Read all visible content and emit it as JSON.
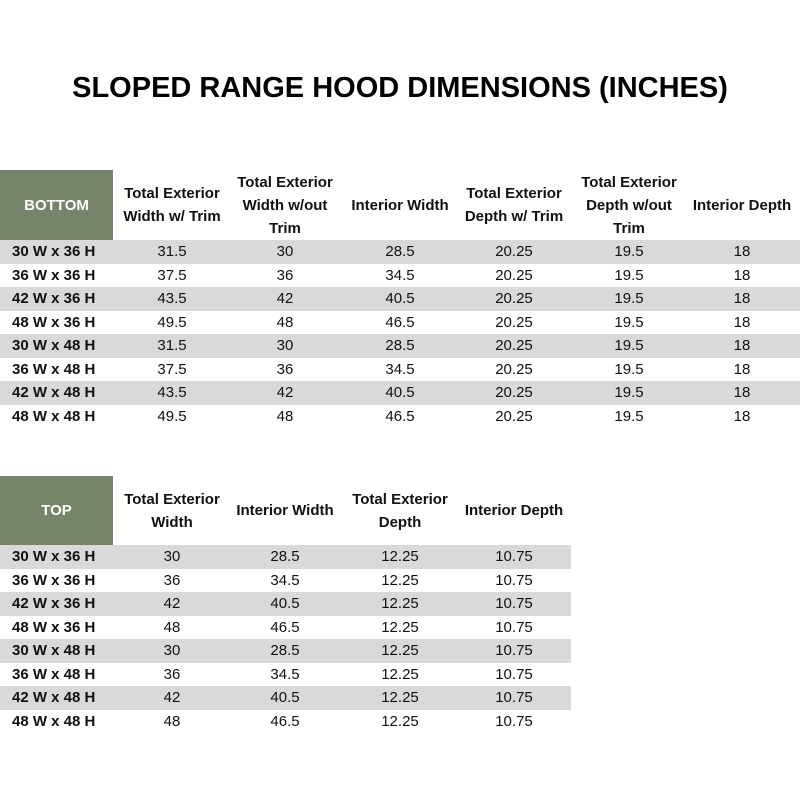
{
  "title": "SLOPED RANGE HOOD DIMENSIONS (INCHES)",
  "bottom": {
    "label": "BOTTOM",
    "columns": [
      "Total Exterior Width w/ Trim",
      "Total Exterior Width w/out Trim",
      "Interior Width",
      "Total Exterior Depth w/ Trim",
      "Total Exterior Depth w/out Trim",
      "Interior Depth"
    ],
    "rows": [
      [
        "30 W x 36 H",
        "31.5",
        "30",
        "28.5",
        "20.25",
        "19.5",
        "18"
      ],
      [
        "36 W x 36 H",
        "37.5",
        "36",
        "34.5",
        "20.25",
        "19.5",
        "18"
      ],
      [
        "42 W x 36 H",
        "43.5",
        "42",
        "40.5",
        "20.25",
        "19.5",
        "18"
      ],
      [
        "48 W x 36 H",
        "49.5",
        "48",
        "46.5",
        "20.25",
        "19.5",
        "18"
      ],
      [
        "30 W x 48 H",
        "31.5",
        "30",
        "28.5",
        "20.25",
        "19.5",
        "18"
      ],
      [
        "36 W x 48 H",
        "37.5",
        "36",
        "34.5",
        "20.25",
        "19.5",
        "18"
      ],
      [
        "42 W x 48 H",
        "43.5",
        "42",
        "40.5",
        "20.25",
        "19.5",
        "18"
      ],
      [
        "48 W x 48 H",
        "49.5",
        "48",
        "46.5",
        "20.25",
        "19.5",
        "18"
      ]
    ]
  },
  "top": {
    "label": "TOP",
    "columns": [
      "Total Exterior Width",
      "Interior Width",
      "Total Exterior Depth",
      "Interior Depth"
    ],
    "rows": [
      [
        "30 W x 36 H",
        "30",
        "28.5",
        "12.25",
        "10.75"
      ],
      [
        "36 W x 36 H",
        "36",
        "34.5",
        "12.25",
        "10.75"
      ],
      [
        "42 W x 36 H",
        "42",
        "40.5",
        "12.25",
        "10.75"
      ],
      [
        "48 W x 36 H",
        "48",
        "46.5",
        "12.25",
        "10.75"
      ],
      [
        "30 W x 48 H",
        "30",
        "28.5",
        "12.25",
        "10.75"
      ],
      [
        "36 W x 48 H",
        "36",
        "34.5",
        "12.25",
        "10.75"
      ],
      [
        "42 W x 48 H",
        "42",
        "40.5",
        "12.25",
        "10.75"
      ],
      [
        "48 W x 48 H",
        "48",
        "46.5",
        "12.25",
        "10.75"
      ]
    ]
  }
}
